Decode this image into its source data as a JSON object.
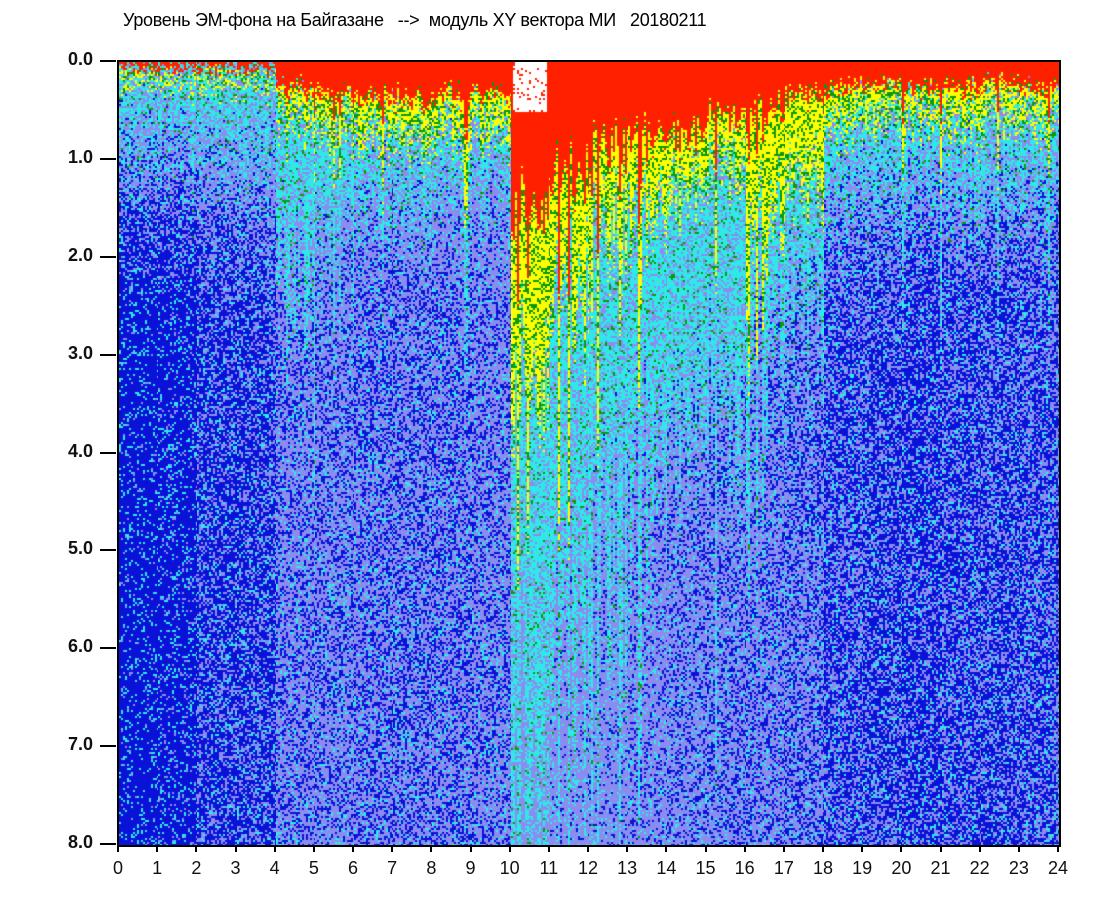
{
  "chart_data": {
    "type": "heatmap",
    "title": "Уровень ЭМ-фона на Байгазане   -->  модуль XY вектора МИ   20180211",
    "xlabel": "",
    "ylabel": "",
    "xlim": [
      0,
      24
    ],
    "ylim": [
      8.0,
      0.0
    ],
    "x_ticks": [
      "0",
      "1",
      "2",
      "3",
      "4",
      "5",
      "6",
      "7",
      "8",
      "9",
      "10",
      "11",
      "12",
      "13",
      "14",
      "15",
      "16",
      "17",
      "18",
      "19",
      "20",
      "21",
      "22",
      "23",
      "24"
    ],
    "y_ticks": [
      "0.0",
      "1.0",
      "2.0",
      "3.0",
      "4.0",
      "5.0",
      "6.0",
      "7.0",
      "8.0"
    ],
    "color_scale": [
      "#0a12d8",
      "#8a8cf0",
      "#30e8e8",
      "#0a9a0a",
      "#ffff00",
      "#ff2000"
    ],
    "hours": [
      0,
      1,
      2,
      3,
      4,
      5,
      6,
      7,
      8,
      9,
      10,
      11,
      12,
      13,
      14,
      15,
      16,
      17,
      18,
      19,
      20,
      21,
      22,
      23
    ],
    "red_depth": [
      0.05,
      0.05,
      0.05,
      0.05,
      0.3,
      0.35,
      0.4,
      0.4,
      0.4,
      0.4,
      1.6,
      1.4,
      1.0,
      0.9,
      0.9,
      0.6,
      0.6,
      0.4,
      0.3,
      0.25,
      0.3,
      0.3,
      0.25,
      0.3
    ],
    "yellow_depth": [
      0.1,
      0.1,
      0.15,
      0.15,
      0.6,
      0.7,
      0.8,
      0.8,
      0.8,
      0.8,
      3.5,
      2.8,
      2.0,
      1.8,
      1.6,
      1.2,
      2.0,
      1.5,
      0.7,
      0.6,
      0.6,
      0.7,
      0.6,
      0.6
    ],
    "cyan_depth": [
      0.9,
      0.8,
      1.0,
      1.0,
      2.5,
      1.8,
      1.5,
      1.5,
      1.5,
      1.5,
      8.0,
      7.0,
      6.0,
      5.0,
      4.5,
      4.0,
      3.5,
      3.0,
      1.6,
      1.5,
      1.4,
      1.6,
      1.5,
      1.5
    ],
    "blue_darkness": [
      0.85,
      0.8,
      0.6,
      0.6,
      0.3,
      0.3,
      0.35,
      0.35,
      0.35,
      0.3,
      0.0,
      0.1,
      0.15,
      0.2,
      0.25,
      0.3,
      0.3,
      0.35,
      0.5,
      0.55,
      0.6,
      0.55,
      0.55,
      0.5
    ]
  }
}
